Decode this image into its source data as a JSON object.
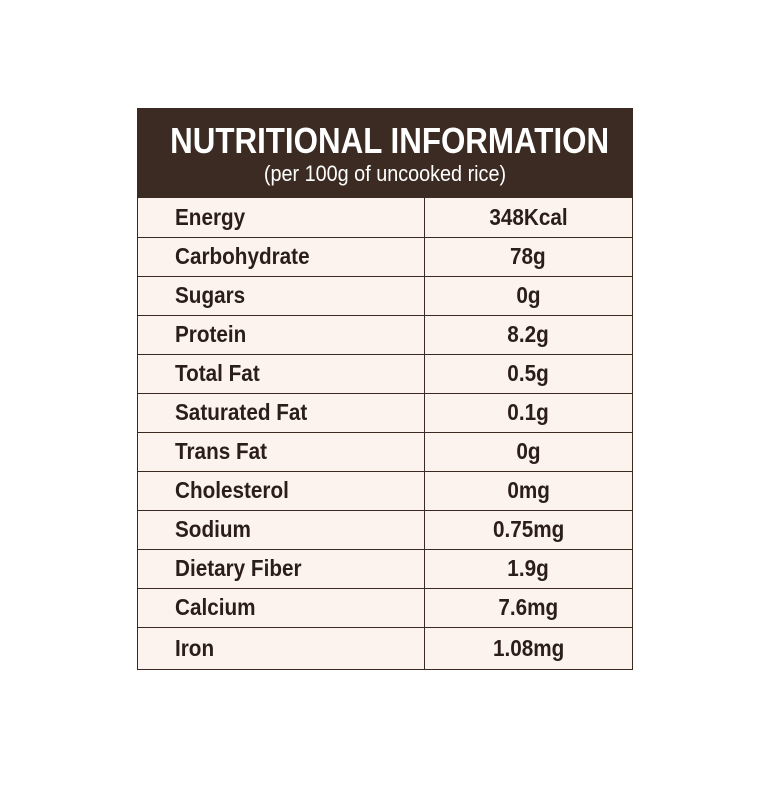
{
  "header": {
    "title": "NUTRITIONAL INFORMATION",
    "subtitle": "(per 100g of uncooked rice)"
  },
  "rows": [
    {
      "label": "Energy",
      "value": "348Kcal"
    },
    {
      "label": "Carbohydrate",
      "value": "78g"
    },
    {
      "label": "Sugars",
      "value": "0g"
    },
    {
      "label": "Protein",
      "value": "8.2g"
    },
    {
      "label": "Total Fat",
      "value": "0.5g"
    },
    {
      "label": "Saturated Fat",
      "value": "0.1g"
    },
    {
      "label": "Trans Fat",
      "value": "0g"
    },
    {
      "label": "Cholesterol",
      "value": "0mg"
    },
    {
      "label": "Sodium",
      "value": "0.75mg"
    },
    {
      "label": "Dietary Fiber",
      "value": "1.9g"
    },
    {
      "label": "Calcium",
      "value": "7.6mg"
    },
    {
      "label": "Iron",
      "value": "1.08mg"
    }
  ],
  "colors": {
    "header_bg": "#3b2b23",
    "body_bg": "#fdf3ee",
    "border": "#3a2a22",
    "text": "#2b1e18"
  }
}
